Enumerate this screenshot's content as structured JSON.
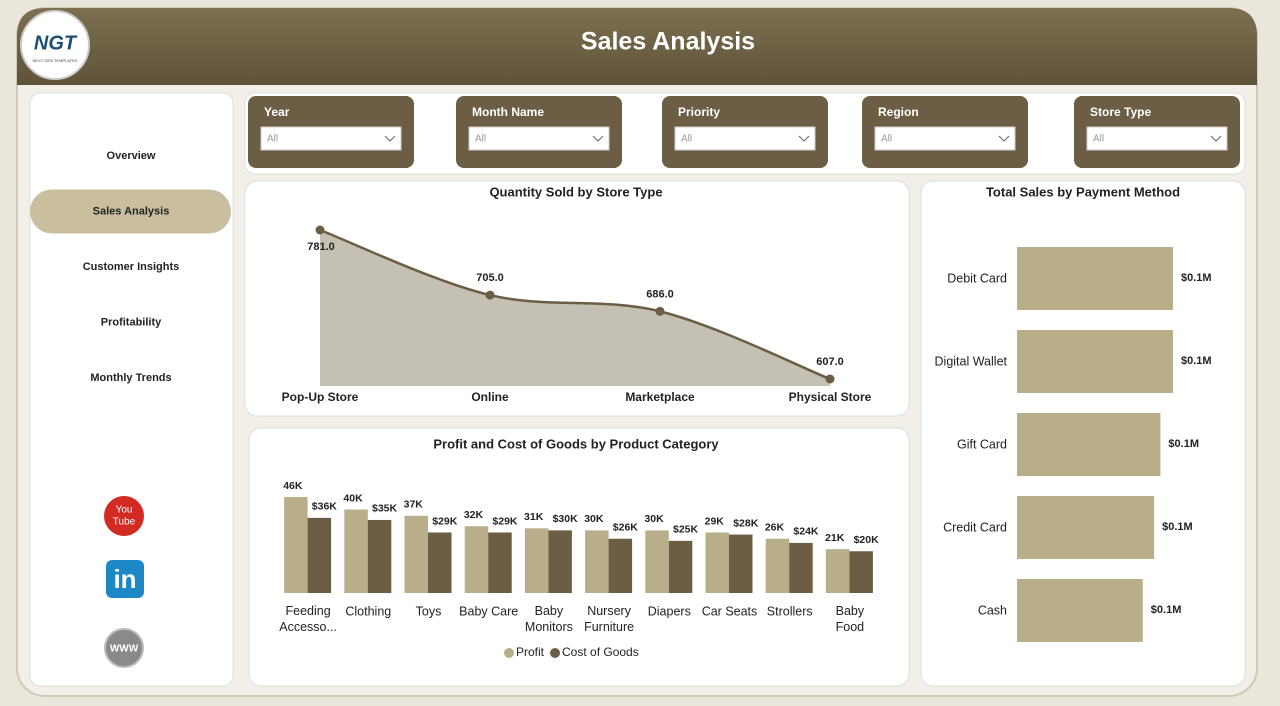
{
  "header": {
    "title": "Sales Analysis",
    "logo": {
      "text": "NGT",
      "subtitle": "NEXT GEN TEMPLATES"
    }
  },
  "nav": {
    "items": [
      "Overview",
      "Sales Analysis",
      "Customer Insights",
      "Profitability",
      "Monthly Trends"
    ],
    "active": 1
  },
  "filters": [
    {
      "label": "Year",
      "value": "All"
    },
    {
      "label": "Month Name",
      "value": "All"
    },
    {
      "label": "Priority",
      "value": "All"
    },
    {
      "label": "Region",
      "value": "All"
    },
    {
      "label": "Store Type",
      "value": "All"
    }
  ],
  "social": {
    "youtube": [
      "You",
      "Tube"
    ],
    "linkedin": "in",
    "website": "WWW"
  },
  "chart_data": [
    {
      "type": "area",
      "title": "Quantity Sold by Store Type",
      "categories": [
        "Pop-Up Store",
        "Online",
        "Marketplace",
        "Physical Store"
      ],
      "values": [
        781,
        705,
        686,
        607
      ],
      "value_labels": [
        "781.0",
        "705.0",
        "686.0",
        "607.0"
      ],
      "color": "#6b5e45",
      "fill": "#c4c0b4"
    },
    {
      "type": "bar",
      "title": "Profit and Cost of Goods by Product Category",
      "categories": [
        "Feeding Accesso...",
        "Clothing",
        "Toys",
        "Baby Care",
        "Baby Monitors",
        "Nursery Furniture",
        "Diapers",
        "Car Seats",
        "Strollers",
        "Baby Food"
      ],
      "series": [
        {
          "name": "Profit",
          "color": "#b9ae8a",
          "values": [
            46000,
            40000,
            37000,
            32000,
            31000,
            30000,
            30000,
            29000,
            26000,
            21000
          ],
          "value_labels": [
            "46K",
            "40K",
            "37K",
            "32K",
            "31K",
            "30K",
            "30K",
            "29K",
            "26K",
            "21K"
          ]
        },
        {
          "name": "Cost of Goods",
          "color": "#6b5e45",
          "values": [
            36000,
            35000,
            29000,
            29000,
            30000,
            26000,
            25000,
            28000,
            24000,
            20000
          ],
          "value_labels": [
            "$36K",
            "$35K",
            "$29K",
            "$29K",
            "$30K",
            "$26K",
            "$25K",
            "$28K",
            "$24K",
            "$20K"
          ]
        }
      ],
      "legend": "bottom"
    },
    {
      "type": "barh",
      "title": "Total Sales by Payment Method",
      "categories": [
        "Debit Card",
        "Digital Wallet",
        "Gift Card",
        "Credit Card",
        "Cash"
      ],
      "values": [
        124000,
        124000,
        114000,
        109000,
        100000
      ],
      "value_labels": [
        "$0.1M",
        "$0.1M",
        "$0.1M",
        "$0.1M",
        "$0.1M"
      ],
      "color": "#b9ae8a"
    }
  ]
}
